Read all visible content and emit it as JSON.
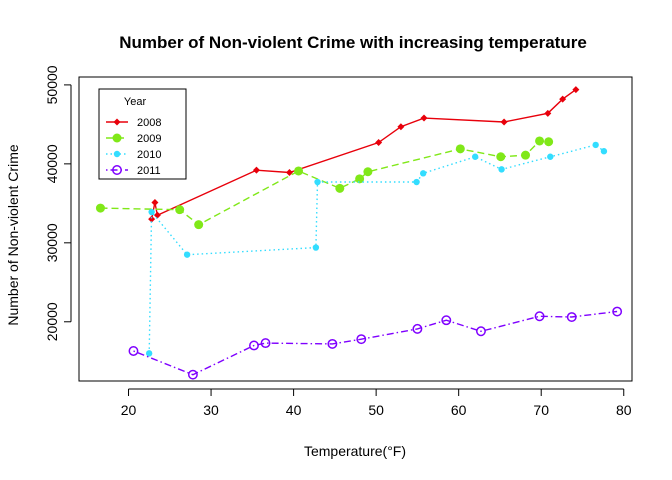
{
  "chart_data": {
    "type": "line",
    "title": "Number of Non-violent Crime with increasing temperature",
    "xlabel": "Temperature(°F)",
    "ylabel": "Number of Non-violent Crime",
    "xlim": [
      14,
      81
    ],
    "ylim": [
      12500,
      51000
    ],
    "xticks": [
      20,
      30,
      40,
      50,
      60,
      70,
      80
    ],
    "yticks": [
      20000,
      30000,
      40000,
      50000
    ],
    "grid": false,
    "legend": {
      "title": "Year",
      "position": "top-left"
    },
    "series": [
      {
        "name": "2008",
        "color": "#e8000b",
        "line_style": "solid",
        "marker": "diamond",
        "x": [
          22.8,
          23.2,
          23.5,
          35.5,
          39.5,
          50.3,
          53.0,
          55.8,
          65.5,
          70.8,
          72.6,
          74.2
        ],
        "y": [
          33000,
          35100,
          33500,
          39200,
          38900,
          42700,
          44700,
          45800,
          45300,
          46400,
          48200,
          49400
        ]
      },
      {
        "name": "2009",
        "color": "#80e818",
        "line_style": "dashed",
        "marker": "circle-filled",
        "x": [
          16.6,
          26.2,
          28.5,
          40.6,
          45.6,
          48.0,
          49.0,
          60.2,
          65.1,
          68.1,
          69.8,
          70.9
        ],
        "y": [
          34400,
          34200,
          32300,
          39100,
          36900,
          38100,
          39000,
          41900,
          40900,
          41100,
          42900,
          42800
        ]
      },
      {
        "name": "2010",
        "color": "#33ddff",
        "line_style": "dotted",
        "marker": "circle-filled-small",
        "x": [
          22.5,
          22.8,
          27.1,
          42.7,
          42.9,
          54.9,
          55.7,
          62.0,
          65.2,
          71.1,
          76.6,
          77.6
        ],
        "y": [
          16000,
          33900,
          28500,
          29400,
          37700,
          37700,
          38800,
          40900,
          39300,
          40900,
          42400,
          41600
        ]
      },
      {
        "name": "2011",
        "color": "#7f00ff",
        "line_style": "dotdash",
        "marker": "circle-open",
        "x": [
          20.6,
          27.8,
          35.2,
          36.6,
          44.7,
          48.2,
          55.0,
          58.5,
          62.7,
          69.8,
          73.7,
          79.2
        ],
        "y": [
          16300,
          13300,
          17000,
          17300,
          17200,
          17800,
          19100,
          20200,
          18800,
          20700,
          20600,
          21300
        ]
      }
    ]
  }
}
